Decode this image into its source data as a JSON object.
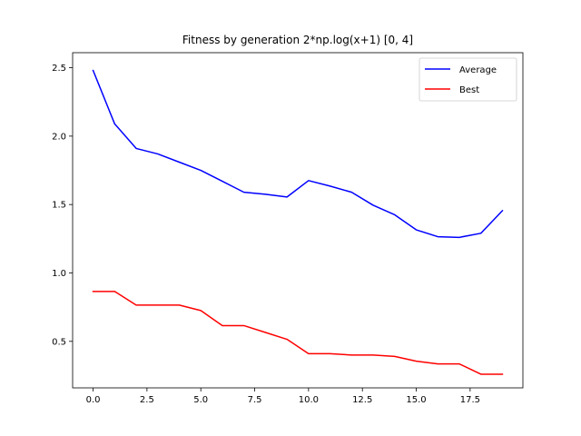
{
  "chart_data": {
    "type": "line",
    "title": "Fitness by generation 2*np.log(x+1) [0, 4]",
    "xlabel": "",
    "ylabel": "",
    "xlim": [
      -0.95,
      19.95
    ],
    "ylim": [
      0.16,
      2.61
    ],
    "x_ticks": [
      0.0,
      2.5,
      5.0,
      7.5,
      10.0,
      12.5,
      15.0,
      17.5
    ],
    "x_tick_labels": [
      "0.0",
      "2.5",
      "5.0",
      "7.5",
      "10.0",
      "12.5",
      "15.0",
      "17.5"
    ],
    "y_ticks": [
      0.5,
      1.0,
      1.5,
      2.0,
      2.5
    ],
    "y_tick_labels": [
      "0.5",
      "1.0",
      "1.5",
      "2.0",
      "2.5"
    ],
    "grid": false,
    "legend_position": "top-right",
    "x": [
      0,
      1,
      2,
      3,
      4,
      5,
      6,
      7,
      8,
      9,
      10,
      11,
      12,
      13,
      14,
      15,
      16,
      17,
      18,
      19
    ],
    "series": [
      {
        "name": "Average",
        "color": "#0000ff",
        "values": [
          2.48,
          2.09,
          1.91,
          1.87,
          1.81,
          1.75,
          1.67,
          1.59,
          1.575,
          1.555,
          1.675,
          1.635,
          1.59,
          1.495,
          1.425,
          1.315,
          1.265,
          1.26,
          1.29,
          1.455
        ]
      },
      {
        "name": "Best",
        "color": "#ff0000",
        "values": [
          0.865,
          0.865,
          0.765,
          0.765,
          0.765,
          0.725,
          0.615,
          0.615,
          0.565,
          0.515,
          0.41,
          0.41,
          0.4,
          0.4,
          0.39,
          0.355,
          0.335,
          0.335,
          0.26,
          0.26
        ]
      }
    ]
  }
}
